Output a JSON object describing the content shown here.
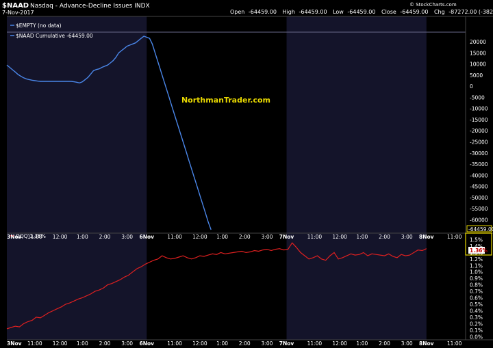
{
  "header": {
    "symbol": "$NAAD",
    "description": "Nasdaq - Advance-Decline Issues INDX",
    "date": "7-Nov-2017",
    "open_label": "Open",
    "open": "-64459.00",
    "high_label": "High",
    "high": "-64459.00",
    "low_label": "Low",
    "low": "-64459.00",
    "close_label": "Close",
    "close": "-64459.00",
    "chg_label": "Chg",
    "chg": "-87272.00 (-382.55%)",
    "chg_arrow": "▼",
    "source": "© StockCharts.com"
  },
  "watermark": "NorthmanTrader.com",
  "colors": {
    "naad": "#4a86e8",
    "qqq": "#e02020",
    "shade": "#14142a",
    "watermark": "#e8d800",
    "badge_border": "#e8d800"
  },
  "chart_data": [
    {
      "type": "line",
      "legend": [
        "$EMPTY (no data)",
        "$NAAD Cumulative -64459.00"
      ],
      "ylim": [
        -66000,
        24000
      ],
      "yticks": [
        20000,
        15000,
        10000,
        5000,
        0,
        -5000,
        -10000,
        -15000,
        -20000,
        -25000,
        -30000,
        -35000,
        -40000,
        -45000,
        -50000,
        -55000,
        -60000
      ],
      "ytick_labels": [
        "20000",
        "15000",
        "10000",
        "5000",
        "0",
        "-5000",
        "-10000",
        "-15000",
        "-20000",
        "-25000",
        "-30000",
        "-35000",
        "-40000",
        "-45000",
        "-50000",
        "-55000",
        "-60000"
      ],
      "last_value_label": "-64459.00",
      "x": [
        0,
        0.5,
        1,
        1.5,
        2,
        2.5,
        3,
        3.5,
        4,
        4.5,
        5,
        5.5,
        6,
        6.5,
        7,
        7.5,
        8,
        8.5,
        9,
        9.5,
        10,
        10.5,
        11,
        11.5,
        12,
        12.5,
        13,
        13.5,
        14,
        14.5,
        15,
        15.5,
        16,
        16.5,
        17,
        17.5,
        18,
        18.5,
        19,
        19.5,
        20,
        20.5,
        21,
        21.5,
        22,
        22.5,
        23,
        23.5,
        24,
        24.5,
        25,
        25.5,
        26,
        26.5,
        27,
        27.5,
        28,
        28.5,
        29,
        29.5,
        30,
        30.5,
        31,
        31.5,
        32,
        32.5,
        33,
        33.5,
        34,
        34.5,
        35,
        35.5,
        36,
        36.5,
        37,
        37.5,
        38,
        38.5,
        39,
        39.5,
        40,
        40.5,
        41,
        41.5,
        42,
        42.5,
        43,
        43.5,
        44,
        44.5,
        45,
        45.5,
        46,
        46.5,
        47,
        47.5,
        48,
        48.5,
        49,
        49.5,
        50
      ],
      "values": [
        9500,
        8500,
        7400,
        6400,
        5300,
        4500,
        3800,
        3300,
        3000,
        2700,
        2500,
        2300,
        2200,
        2200,
        2200,
        2200,
        2200,
        2200,
        2200,
        2200,
        2200,
        2200,
        2200,
        2200,
        2000,
        1800,
        1500,
        2000,
        3000,
        4000,
        5500,
        7000,
        7500,
        7800,
        8500,
        9000,
        9500,
        10500,
        11500,
        13000,
        15000,
        16000,
        17000,
        18000,
        18500,
        19000,
        19500,
        20500,
        21500,
        22500,
        22000,
        21500,
        19000,
        15000,
        11000,
        7000,
        3000,
        -1000,
        -5000,
        -9000,
        -13000,
        -17000,
        -21000,
        -25000,
        -29000,
        -33000,
        -37000,
        -41000,
        -45000,
        -49000,
        -53000,
        -57000,
        -61000,
        -64459,
        null,
        null,
        null,
        null,
        null,
        null,
        null,
        null,
        null,
        null,
        null,
        null,
        null,
        null,
        null,
        null,
        null,
        null,
        null,
        null,
        null,
        null,
        null,
        null,
        null,
        null,
        null
      ]
    },
    {
      "type": "line",
      "legend": [
        "QQQ 1.36%"
      ],
      "ylim": [
        -0.05,
        1.6
      ],
      "yticks": [
        1.5,
        1.4,
        1.3,
        1.2,
        1.1,
        1.0,
        0.9,
        0.8,
        0.7,
        0.6,
        0.5,
        0.4,
        0.3,
        0.2,
        0.1,
        0.0
      ],
      "ytick_labels": [
        "1.5%",
        "1.4%",
        "1.3%",
        "1.2%",
        "1.1%",
        "1.0%",
        "0.9%",
        "0.8%",
        "0.7%",
        "0.6%",
        "0.5%",
        "0.4%",
        "0.3%",
        "0.2%",
        "0.1%",
        "0.0%"
      ],
      "last_value_label": "1.36%",
      "values": [
        0.12,
        0.14,
        0.16,
        0.15,
        0.2,
        0.23,
        0.25,
        0.3,
        0.29,
        0.33,
        0.37,
        0.4,
        0.43,
        0.46,
        0.5,
        0.52,
        0.55,
        0.58,
        0.6,
        0.63,
        0.66,
        0.7,
        0.72,
        0.75,
        0.8,
        0.82,
        0.85,
        0.88,
        0.92,
        0.95,
        1.0,
        1.05,
        1.08,
        1.12,
        1.15,
        1.18,
        1.2,
        1.25,
        1.22,
        1.2,
        1.21,
        1.23,
        1.25,
        1.22,
        1.2,
        1.22,
        1.25,
        1.24,
        1.26,
        1.28,
        1.27,
        1.3,
        1.28,
        1.29,
        1.3,
        1.31,
        1.32,
        1.3,
        1.31,
        1.33,
        1.32,
        1.34,
        1.35,
        1.33,
        1.35,
        1.36,
        1.34,
        1.35,
        1.45,
        1.38,
        1.3,
        1.25,
        1.2,
        1.22,
        1.25,
        1.2,
        1.18,
        1.25,
        1.3,
        1.2,
        1.22,
        1.25,
        1.28,
        1.26,
        1.27,
        1.3,
        1.25,
        1.28,
        1.27,
        1.26,
        1.25,
        1.28,
        1.24,
        1.22,
        1.27,
        1.25,
        1.26,
        1.3,
        1.34,
        1.33,
        1.36
      ]
    }
  ],
  "x_axis": {
    "labels": [
      {
        "x": 0,
        "text": "3Nov",
        "bold": true
      },
      {
        "x": 5,
        "text": "11:00"
      },
      {
        "x": 9.5,
        "text": "12:00"
      },
      {
        "x": 13.5,
        "text": "1:00"
      },
      {
        "x": 17.5,
        "text": "2:00"
      },
      {
        "x": 21.5,
        "text": "3:00"
      },
      {
        "x": 25,
        "text": "6Nov",
        "bold": true
      },
      {
        "x": 30,
        "text": "11:00"
      },
      {
        "x": 34.5,
        "text": "12:00"
      },
      {
        "x": 38.5,
        "text": "1:00"
      },
      {
        "x": 42.5,
        "text": "2:00"
      },
      {
        "x": 46.5,
        "text": "3:00"
      },
      {
        "x": 50,
        "text": "7Nov",
        "bold": true
      },
      {
        "x": 55,
        "text": "11:00"
      },
      {
        "x": 59.5,
        "text": "12:00"
      },
      {
        "x": 63.5,
        "text": "1:00"
      },
      {
        "x": 67.5,
        "text": "2:00"
      },
      {
        "x": 71.5,
        "text": "3:00"
      },
      {
        "x": 75,
        "text": "8Nov",
        "bold": true
      },
      {
        "x": 80,
        "text": "11:00"
      }
    ],
    "xlim": [
      0,
      82
    ],
    "shaded": [
      [
        0,
        25
      ],
      [
        50,
        75
      ]
    ]
  }
}
